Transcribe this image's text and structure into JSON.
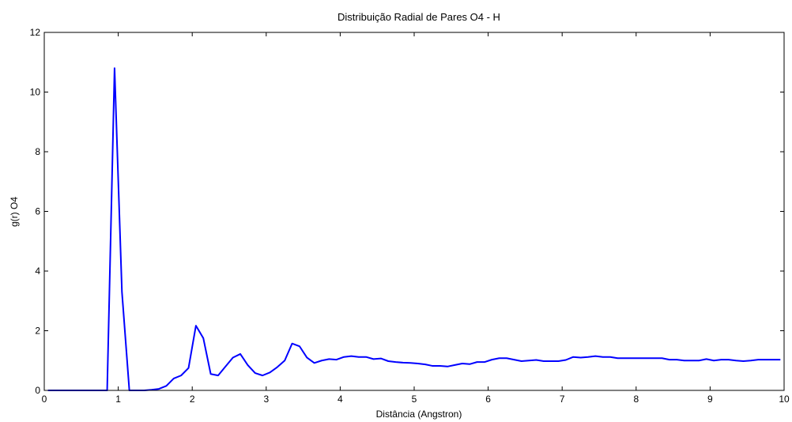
{
  "chart_data": {
    "type": "line",
    "title": "Distribuição Radial de Pares O4 - H",
    "xlabel": "Distância (Angstron)",
    "ylabel": "g(r) O4",
    "xlim": [
      0,
      10
    ],
    "ylim": [
      0,
      12
    ],
    "xticks": [
      "0",
      "1",
      "2",
      "3",
      "4",
      "5",
      "6",
      "7",
      "8",
      "9",
      "10"
    ],
    "yticks": [
      "0",
      "2",
      "4",
      "6",
      "8",
      "10",
      "12"
    ],
    "grid": false,
    "legend": "none",
    "series": [
      {
        "color": "#0000ff",
        "x": [
          0.05,
          0.15,
          0.25,
          0.35,
          0.45,
          0.55,
          0.65,
          0.75,
          0.85,
          0.95,
          1.05,
          1.15,
          1.25,
          1.35,
          1.45,
          1.55,
          1.65,
          1.75,
          1.85,
          1.95,
          2.05,
          2.15,
          2.25,
          2.35,
          2.45,
          2.55,
          2.65,
          2.75,
          2.85,
          2.95,
          3.05,
          3.15,
          3.25,
          3.35,
          3.45,
          3.55,
          3.65,
          3.75,
          3.85,
          3.95,
          4.05,
          4.15,
          4.25,
          4.35,
          4.45,
          4.55,
          4.65,
          4.75,
          4.85,
          4.95,
          5.05,
          5.15,
          5.25,
          5.35,
          5.45,
          5.55,
          5.65,
          5.75,
          5.85,
          5.95,
          6.05,
          6.15,
          6.25,
          6.35,
          6.45,
          6.55,
          6.65,
          6.75,
          6.85,
          6.95,
          7.05,
          7.15,
          7.25,
          7.35,
          7.45,
          7.55,
          7.65,
          7.75,
          7.85,
          7.95,
          8.05,
          8.15,
          8.25,
          8.35,
          8.45,
          8.55,
          8.65,
          8.75,
          8.85,
          8.95,
          9.05,
          9.15,
          9.25,
          9.35,
          9.45,
          9.55,
          9.65,
          9.75,
          9.85,
          9.95
        ],
        "y": [
          0,
          0,
          0,
          0,
          0,
          0,
          0,
          0,
          0,
          10.8,
          3.3,
          0,
          0,
          0,
          0.02,
          0.05,
          0.15,
          0.4,
          0.5,
          0.75,
          2.17,
          1.75,
          0.55,
          0.5,
          0.8,
          1.1,
          1.22,
          0.85,
          0.58,
          0.5,
          0.6,
          0.78,
          1.0,
          1.57,
          1.48,
          1.1,
          0.92,
          1.0,
          1.05,
          1.03,
          1.12,
          1.15,
          1.12,
          1.12,
          1.05,
          1.07,
          0.98,
          0.95,
          0.93,
          0.92,
          0.9,
          0.87,
          0.82,
          0.82,
          0.8,
          0.85,
          0.9,
          0.88,
          0.95,
          0.95,
          1.03,
          1.08,
          1.08,
          1.03,
          0.98,
          1.0,
          1.02,
          0.98,
          0.98,
          0.98,
          1.02,
          1.12,
          1.1,
          1.12,
          1.15,
          1.12,
          1.12,
          1.08,
          1.08,
          1.08,
          1.08,
          1.08,
          1.08,
          1.08,
          1.03,
          1.03,
          1.0,
          1.0,
          1.0,
          1.05,
          1.0,
          1.03,
          1.03,
          1.0,
          0.98,
          1.0,
          1.03,
          1.03,
          1.03,
          1.03
        ]
      }
    ]
  }
}
